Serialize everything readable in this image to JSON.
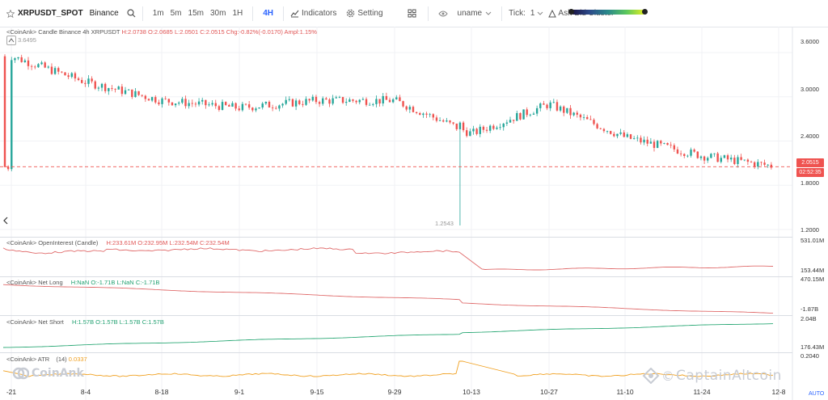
{
  "toolbar": {
    "symbol": "XRPUSDT_SPOT",
    "exchange": "Binance",
    "timeframes": [
      "1m",
      "5m",
      "15m",
      "30m",
      "1H",
      "4H"
    ],
    "active_timeframe": "4H",
    "indicators_label": "Indicators",
    "setting_label": "Setting",
    "user_label": "uname",
    "tick_label": "Tick:",
    "tick_value": "1",
    "cluster_label": "Ask-Bid Cluster"
  },
  "main_pane": {
    "title": "<CoinAnk> Candle  Binance 4h XRPUSDT",
    "h": "H:2.0738",
    "o": "O:2.0685",
    "l": "L:2.0501",
    "c": "C:2.0515",
    "chg": "Chg:-0.82%(-0.0170)",
    "ampl": "Ampl:1.15%",
    "high_marker": "3.6495",
    "low_marker": "1.2543",
    "axis": [
      "3.6000",
      "3.0000",
      "2.4000",
      "1.8000",
      "1.2000"
    ],
    "current_price": "2.0515",
    "countdown": "02:52:35"
  },
  "oi_pane": {
    "title": "<CoinAnk> OpenInterest (Candle)",
    "h": "H:233.61M",
    "o": "O:232.95M",
    "l": "L:232.54M",
    "c": "C:232.54M",
    "axis_top": "531.01M",
    "axis_bottom": "153.44M"
  },
  "netlong_pane": {
    "title": "<CoinAnk> Net Long",
    "h": "H:NaN",
    "o": "O:-1.71B",
    "l": "L:NaN",
    "c": "C:-1.71B",
    "axis_top": "470.15M",
    "axis_bottom": "-1.87B"
  },
  "netshort_pane": {
    "title": "<CoinAnk> Net Short",
    "h": "H:1.57B",
    "o": "O:1.57B",
    "l": "L:1.57B",
    "c": "C:1.57B",
    "axis_top": "2.04B",
    "axis_bottom": "176.43M"
  },
  "atr_pane": {
    "title": "<CoinAnk> ATR",
    "period": "(14)",
    "value": "0.0337",
    "axis_top": "0.2040"
  },
  "dates": [
    "-21",
    "8-4",
    "8-18",
    "9-1",
    "9-15",
    "9-29",
    "10-13",
    "10-27",
    "11-10",
    "11-24",
    "12-8"
  ],
  "auto_label": "AUTO",
  "watermark_left": "CoinAnk",
  "watermark_right": "CaptainAltcoin",
  "colors": {
    "up": "#26a69a",
    "down": "#ef5350",
    "accent": "#2962ff",
    "atr": "#f0a020"
  },
  "chart_data": [
    {
      "type": "candlestick",
      "title": "XRPUSDT 4h Binance",
      "x": [
        "-21",
        "8-4",
        "8-18",
        "9-1",
        "9-15",
        "9-29",
        "10-13",
        "10-27",
        "11-10",
        "11-24",
        "12-8"
      ],
      "close_approx": [
        3.55,
        3.2,
        2.95,
        2.85,
        2.95,
        2.95,
        2.5,
        2.9,
        2.45,
        2.2,
        2.05
      ],
      "ylim": [
        1.2,
        3.7
      ]
    },
    {
      "type": "line",
      "title": "OpenInterest",
      "ylim_labels": [
        "153.44M",
        "531.01M"
      ]
    },
    {
      "type": "line",
      "title": "Net Long",
      "ylim_labels": [
        "-1.87B",
        "470.15M"
      ]
    },
    {
      "type": "line",
      "title": "Net Short",
      "ylim_labels": [
        "176.43M",
        "2.04B"
      ]
    },
    {
      "type": "line",
      "title": "ATR",
      "ylim_labels": [
        "0.2040"
      ]
    }
  ]
}
